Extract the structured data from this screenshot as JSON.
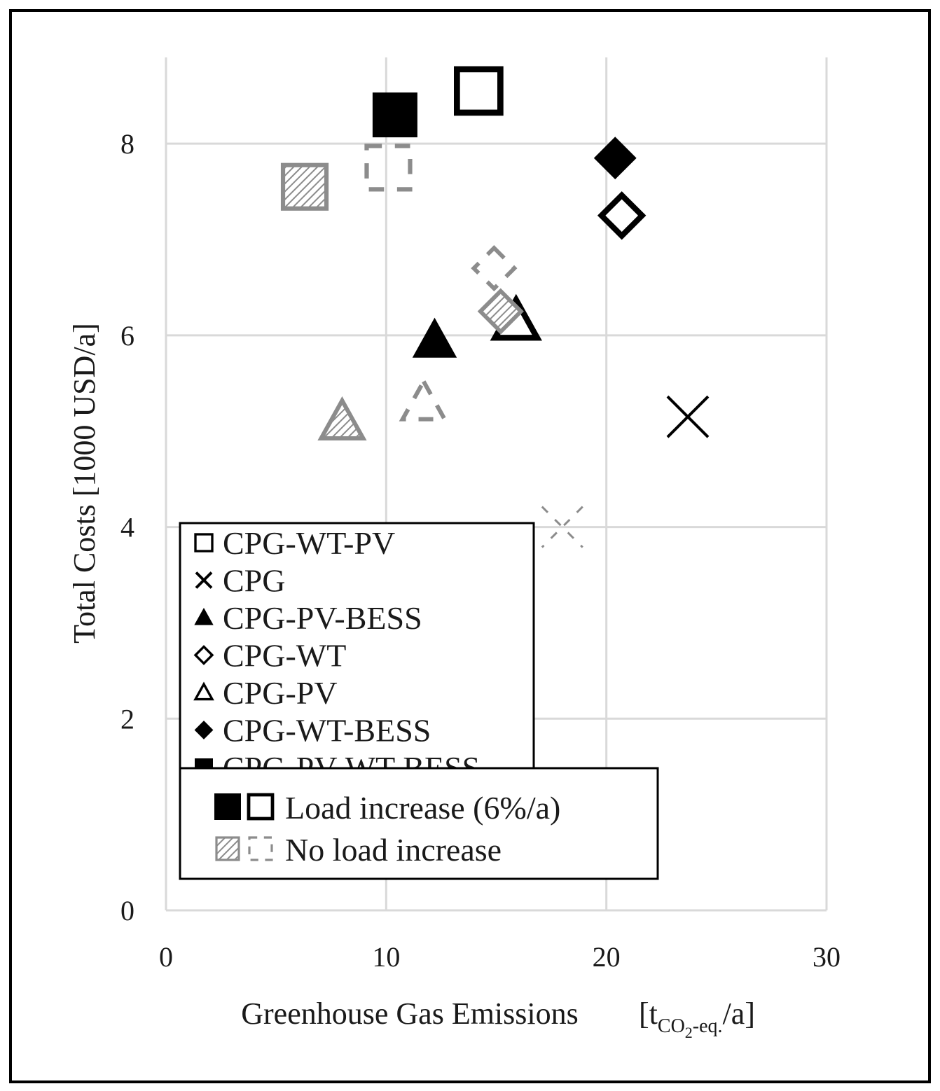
{
  "chart_data": {
    "type": "scatter",
    "xlabel": "Greenhouse Gas Emissions",
    "xlabel_unit": {
      "open": "[t",
      "sub": "CO",
      "sub2": "2",
      "sub3": "-eq.",
      "close": "/a]"
    },
    "ylabel": "Total Costs [1000 USD/a]",
    "xlim": [
      0,
      30
    ],
    "ylim": [
      0,
      8.9
    ],
    "x_ticks": [
      0,
      10,
      20,
      30
    ],
    "y_ticks": [
      0,
      2,
      4,
      6,
      8
    ],
    "grid": true,
    "series": [
      {
        "name": "CPG-WT-PV",
        "marker": "square",
        "points": [
          {
            "scenario": "load",
            "x": 14.2,
            "y": 8.55
          },
          {
            "scenario": "noload",
            "x": 10.1,
            "y": 7.75
          }
        ]
      },
      {
        "name": "CPG",
        "marker": "x",
        "points": [
          {
            "scenario": "load",
            "x": 23.7,
            "y": 5.15
          },
          {
            "scenario": "noload",
            "x": 18.0,
            "y": 4.0
          }
        ]
      },
      {
        "name": "CPG-PV-BESS",
        "marker": "triangle-filled",
        "points": [
          {
            "scenario": "load",
            "x": 12.2,
            "y": 5.95
          },
          {
            "scenario": "noload",
            "x": 8.0,
            "y": 5.1
          }
        ]
      },
      {
        "name": "CPG-WT",
        "marker": "diamond",
        "points": [
          {
            "scenario": "load",
            "x": 20.7,
            "y": 7.25
          },
          {
            "scenario": "noload",
            "x": 14.9,
            "y": 6.7
          }
        ]
      },
      {
        "name": "CPG-PV",
        "marker": "triangle",
        "points": [
          {
            "scenario": "load",
            "x": 15.9,
            "y": 6.15
          },
          {
            "scenario": "noload",
            "x": 11.7,
            "y": 5.3
          }
        ]
      },
      {
        "name": "CPG-WT-BESS",
        "marker": "diamond-filled",
        "points": [
          {
            "scenario": "load",
            "x": 20.4,
            "y": 7.85
          },
          {
            "scenario": "noload",
            "x": 15.2,
            "y": 6.25
          }
        ]
      },
      {
        "name": "CPG-PV-WT-BESS",
        "marker": "square-filled",
        "points": [
          {
            "scenario": "load",
            "x": 10.4,
            "y": 8.3
          },
          {
            "scenario": "noload",
            "x": 6.3,
            "y": 7.55
          }
        ]
      }
    ],
    "scenario_legend": [
      {
        "key": "load",
        "label": "Load increase (6%/a)"
      },
      {
        "key": "noload",
        "label": "No load increase"
      }
    ],
    "colors": {
      "load": "#000000",
      "noload": "#8c8c8c",
      "grid": "#d9d9d9"
    }
  }
}
